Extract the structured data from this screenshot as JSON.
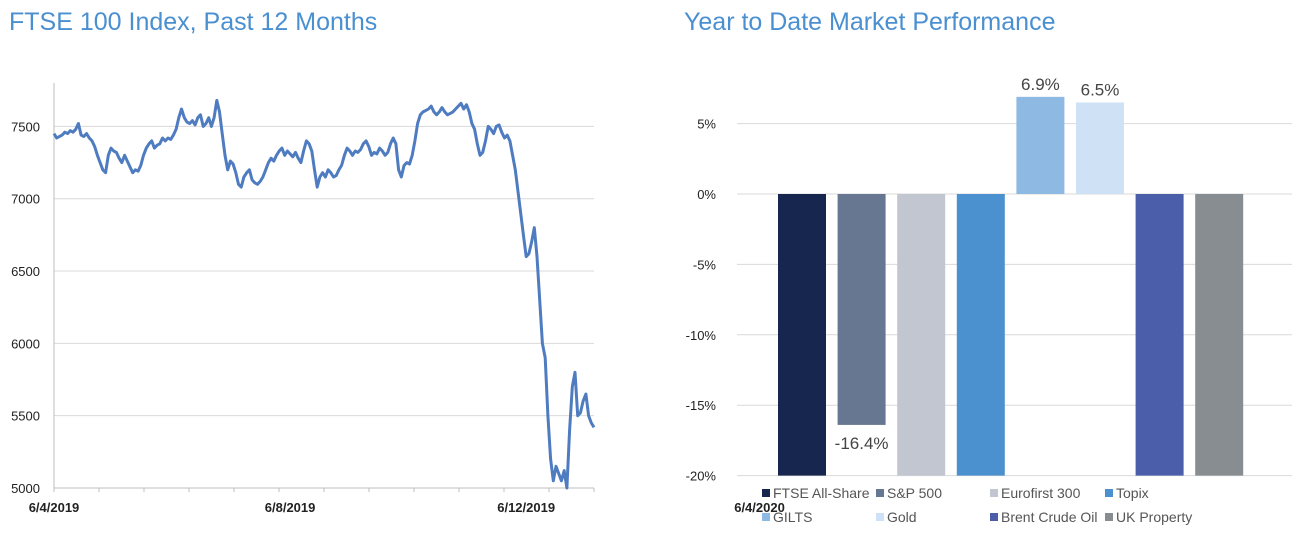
{
  "chart_data": [
    {
      "type": "line",
      "title": "FTSE 100 Index, Past 12 Months",
      "xlabel": "",
      "ylabel": "",
      "ylim": [
        5000,
        7800
      ],
      "yticks": [
        5000,
        5500,
        6000,
        6500,
        7000,
        7500
      ],
      "xtick_labels": [
        "6/4/2019",
        "6/8/2019",
        "6/12/2019",
        "6/4/2020"
      ],
      "xtick_index": [
        0,
        87,
        174,
        260
      ],
      "grid": true,
      "color": "#4f7cc0",
      "series": [
        {
          "name": "FTSE 100",
          "values": [
            7450,
            7420,
            7430,
            7440,
            7460,
            7450,
            7470,
            7460,
            7480,
            7520,
            7440,
            7430,
            7450,
            7420,
            7400,
            7360,
            7300,
            7250,
            7200,
            7180,
            7300,
            7350,
            7330,
            7320,
            7280,
            7250,
            7300,
            7260,
            7220,
            7180,
            7200,
            7190,
            7230,
            7300,
            7350,
            7380,
            7400,
            7350,
            7370,
            7380,
            7420,
            7400,
            7420,
            7410,
            7440,
            7480,
            7560,
            7620,
            7560,
            7530,
            7520,
            7540,
            7510,
            7560,
            7580,
            7500,
            7520,
            7560,
            7500,
            7560,
            7680,
            7600,
            7450,
            7300,
            7200,
            7260,
            7240,
            7180,
            7100,
            7080,
            7150,
            7180,
            7200,
            7130,
            7110,
            7100,
            7120,
            7150,
            7200,
            7250,
            7280,
            7260,
            7300,
            7330,
            7350,
            7300,
            7330,
            7310,
            7290,
            7320,
            7280,
            7250,
            7330,
            7400,
            7380,
            7330,
            7200,
            7080,
            7150,
            7180,
            7150,
            7200,
            7180,
            7150,
            7160,
            7200,
            7230,
            7300,
            7350,
            7330,
            7300,
            7330,
            7320,
            7340,
            7380,
            7400,
            7360,
            7300,
            7320,
            7310,
            7350,
            7330,
            7300,
            7320,
            7380,
            7420,
            7380,
            7200,
            7150,
            7230,
            7250,
            7240,
            7300,
            7400,
            7520,
            7580,
            7600,
            7610,
            7620,
            7640,
            7600,
            7580,
            7600,
            7630,
            7600,
            7580,
            7590,
            7600,
            7620,
            7640,
            7660,
            7620,
            7650,
            7600,
            7520,
            7480,
            7380,
            7300,
            7320,
            7400,
            7500,
            7480,
            7450,
            7500,
            7510,
            7460,
            7420,
            7440,
            7400,
            7300,
            7200,
            7050,
            6900,
            6750,
            6600,
            6620,
            6700,
            6800,
            6600,
            6300,
            6000,
            5900,
            5500,
            5200,
            5050,
            5150,
            5100,
            5050,
            5120,
            5000,
            5400,
            5700,
            5800,
            5500,
            5520,
            5600,
            5650,
            5500,
            5450,
            5420
          ]
        }
      ]
    },
    {
      "type": "bar",
      "title": "Year to Date Market Performance",
      "ylim": [
        -20,
        7
      ],
      "yticks": [
        -20,
        -15,
        -10,
        -5,
        0,
        5
      ],
      "ytick_labels": [
        "-20%",
        "-15%",
        "-10%",
        "-5%",
        "0%",
        "5%"
      ],
      "grid": true,
      "categories": [
        "FTSE All-Share",
        "S&P 500",
        "Eurofirst 300",
        "Topix",
        "GILTS",
        "Gold",
        "Brent Crude Oil",
        "UK Property"
      ],
      "values": [
        -20,
        -16.4,
        -20,
        -20,
        6.9,
        6.5,
        -20,
        -20
      ],
      "colors": [
        "#17264f",
        "#687791",
        "#c2c6d1",
        "#4b90cf",
        "#8eb9e3",
        "#cfe1f4",
        "#4a5ea9",
        "#878d90"
      ],
      "data_labels": [
        "",
        "-16.4%",
        "",
        "",
        "6.9%",
        "6.5%",
        "",
        ""
      ],
      "legend": [
        "FTSE All-Share",
        "S&P 500",
        "Eurofirst 300",
        "Topix",
        "GILTS",
        "Gold",
        "Brent Crude Oil",
        "UK Property"
      ],
      "legend_placement": "bottom"
    }
  ]
}
